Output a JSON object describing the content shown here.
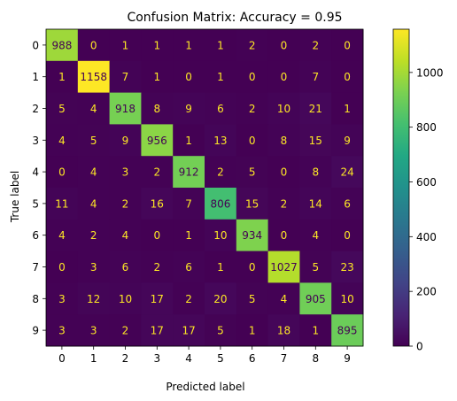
{
  "chart_data": {
    "type": "heatmap",
    "title": "Confusion Matrix: Accuracy = 0.95",
    "xlabel": "Predicted label",
    "ylabel": "True label",
    "x_categories": [
      "0",
      "1",
      "2",
      "3",
      "4",
      "5",
      "6",
      "7",
      "8",
      "9"
    ],
    "y_categories": [
      "0",
      "1",
      "2",
      "3",
      "4",
      "5",
      "6",
      "7",
      "8",
      "9"
    ],
    "values": [
      [
        988,
        0,
        1,
        1,
        1,
        1,
        2,
        0,
        2,
        0
      ],
      [
        1,
        1158,
        7,
        1,
        0,
        1,
        0,
        0,
        7,
        0
      ],
      [
        5,
        4,
        918,
        8,
        9,
        6,
        2,
        10,
        21,
        1
      ],
      [
        4,
        5,
        9,
        956,
        1,
        13,
        0,
        8,
        15,
        9
      ],
      [
        0,
        4,
        3,
        2,
        912,
        2,
        5,
        0,
        8,
        24
      ],
      [
        11,
        4,
        2,
        16,
        7,
        806,
        15,
        2,
        14,
        6
      ],
      [
        4,
        2,
        4,
        0,
        1,
        10,
        934,
        0,
        4,
        0
      ],
      [
        0,
        3,
        6,
        2,
        6,
        1,
        0,
        1027,
        5,
        23
      ],
      [
        3,
        12,
        10,
        17,
        2,
        20,
        5,
        4,
        905,
        10
      ],
      [
        3,
        3,
        2,
        17,
        17,
        5,
        1,
        18,
        1,
        895
      ]
    ],
    "colormap": "viridis",
    "colorbar": {
      "range": [
        0,
        1158
      ],
      "ticks": [
        0,
        200,
        400,
        600,
        800,
        1000
      ]
    },
    "annotation_colors": {
      "on_dark": "#fde725",
      "on_light": "#440154"
    },
    "grid": false
  }
}
